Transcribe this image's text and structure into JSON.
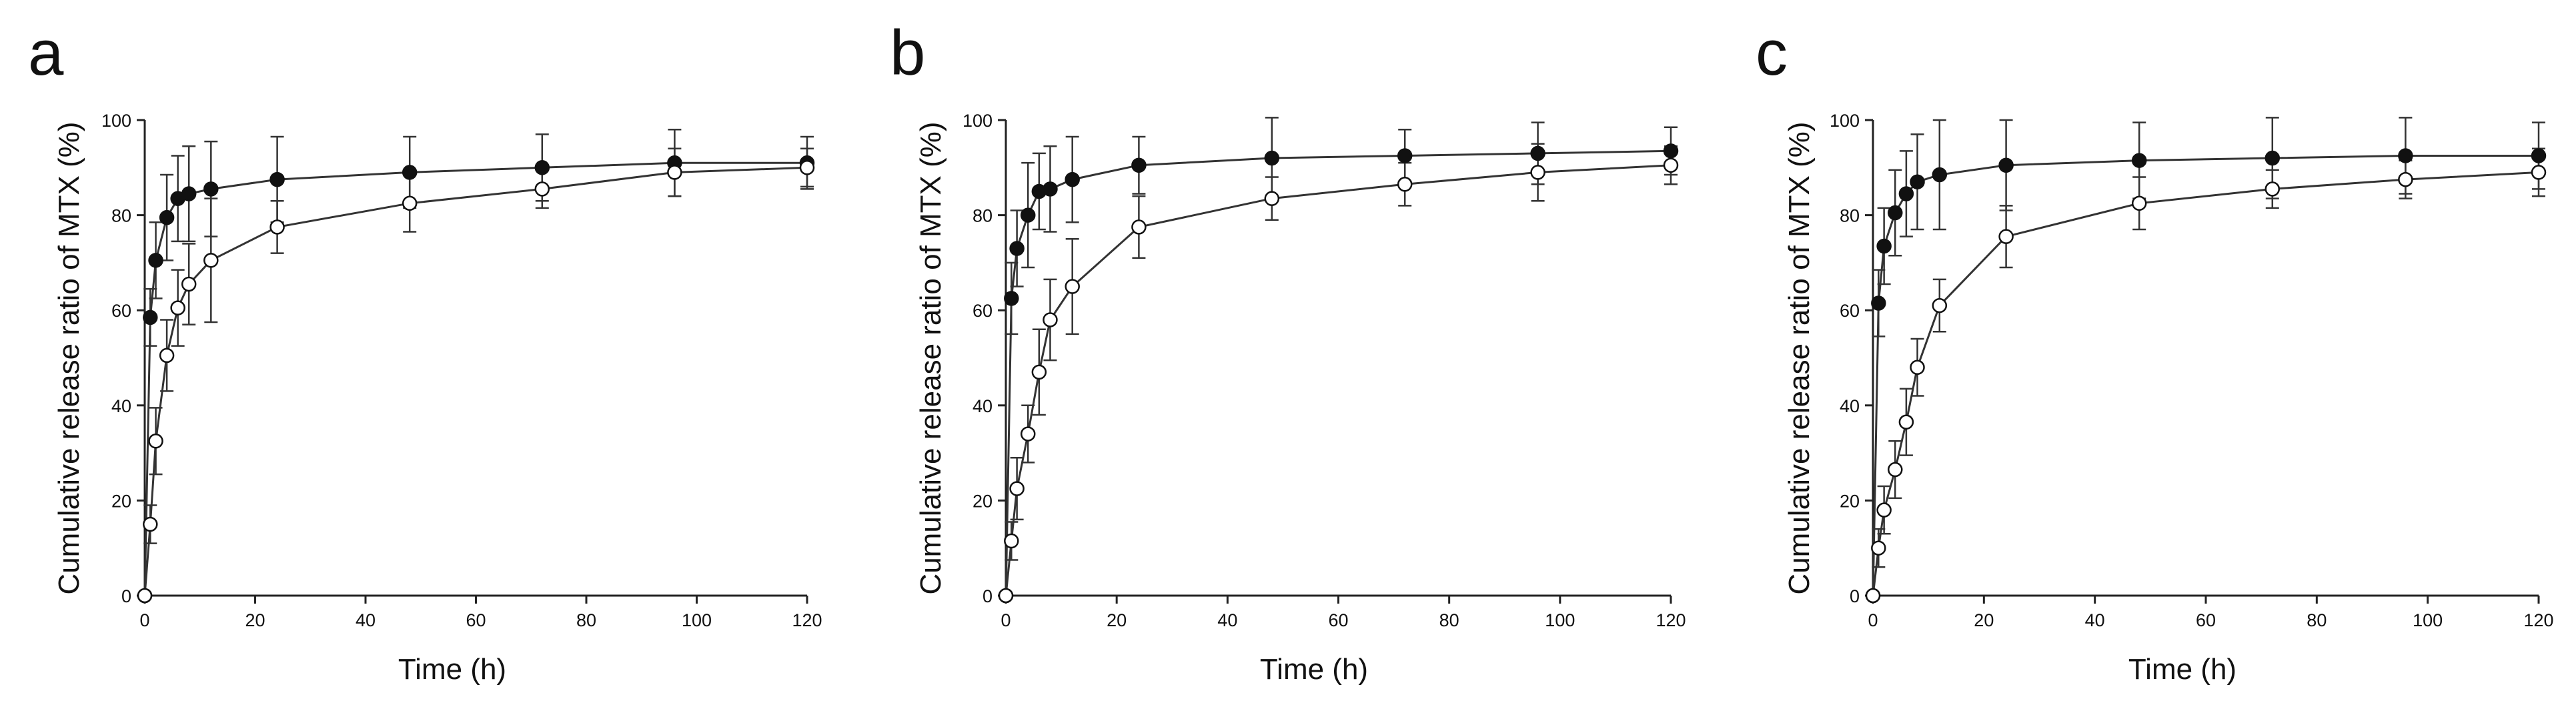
{
  "chart_data": [
    {
      "type": "line",
      "panel_label": "a",
      "xlabel": "Time (h)",
      "ylabel": "Cumulative release ratio of MTX (%)",
      "xlim": [
        0,
        120
      ],
      "ylim": [
        0,
        100
      ],
      "xticks": [
        0,
        20,
        40,
        60,
        80,
        100,
        120
      ],
      "yticks": [
        0,
        20,
        40,
        60,
        80,
        100
      ],
      "x": [
        0,
        1,
        2,
        4,
        6,
        8,
        12,
        24,
        48,
        72,
        96,
        120
      ],
      "series": [
        {
          "name": "filled",
          "marker": "filled",
          "values": [
            0,
            58.5,
            70.5,
            79.5,
            83.5,
            84.5,
            85.5,
            87.5,
            89,
            90,
            91,
            91
          ],
          "errors": [
            0,
            6,
            8,
            9,
            9,
            10,
            10,
            9,
            7.5,
            7,
            7,
            5.5
          ]
        },
        {
          "name": "open",
          "marker": "open",
          "values": [
            0,
            15,
            32.5,
            50.5,
            60.5,
            65.5,
            70.5,
            77.5,
            82.5,
            85.5,
            89,
            90
          ],
          "errors": [
            0,
            4,
            7,
            7.5,
            8,
            8.5,
            13,
            5.5,
            6,
            4,
            5,
            4
          ]
        }
      ]
    },
    {
      "type": "line",
      "panel_label": "b",
      "xlabel": "Time (h)",
      "ylabel": "Cumulative release ratio of MTX (%)",
      "xlim": [
        0,
        120
      ],
      "ylim": [
        0,
        100
      ],
      "xticks": [
        0,
        20,
        40,
        60,
        80,
        100,
        120
      ],
      "yticks": [
        0,
        20,
        40,
        60,
        80,
        100
      ],
      "x": [
        0,
        1,
        2,
        4,
        6,
        8,
        12,
        24,
        48,
        72,
        96,
        120
      ],
      "series": [
        {
          "name": "filled",
          "marker": "filled",
          "values": [
            0,
            62.5,
            73,
            80,
            85,
            85.5,
            87.5,
            90.5,
            92,
            92.5,
            93,
            93.5
          ],
          "errors": [
            0,
            7.5,
            8,
            11,
            8,
            9,
            9,
            6,
            8.5,
            5.5,
            6.5,
            5
          ]
        },
        {
          "name": "open",
          "marker": "open",
          "values": [
            0,
            11.5,
            22.5,
            34,
            47,
            58,
            65,
            77.5,
            83.5,
            86.5,
            89,
            90.5
          ],
          "errors": [
            0,
            4,
            6.5,
            6,
            9,
            8.5,
            10,
            6.5,
            4.5,
            4.5,
            6,
            4
          ]
        }
      ]
    },
    {
      "type": "line",
      "panel_label": "c",
      "xlabel": "Time (h)",
      "ylabel": "Cumulative release ratio of MTX (%)",
      "xlim": [
        0,
        120
      ],
      "ylim": [
        0,
        100
      ],
      "xticks": [
        0,
        20,
        40,
        60,
        80,
        100,
        120
      ],
      "yticks": [
        0,
        20,
        40,
        60,
        80,
        100
      ],
      "x": [
        0,
        1,
        2,
        4,
        6,
        8,
        12,
        24,
        48,
        72,
        96,
        120
      ],
      "series": [
        {
          "name": "filled",
          "marker": "filled",
          "values": [
            0,
            61.5,
            73.5,
            80.5,
            84.5,
            87,
            88.5,
            90.5,
            91.5,
            92,
            92.5,
            92.5
          ],
          "errors": [
            0,
            7,
            8,
            9,
            9,
            10,
            11.5,
            9.5,
            8,
            8.5,
            8,
            7
          ]
        },
        {
          "name": "open",
          "marker": "open",
          "values": [
            0,
            10,
            18,
            26.5,
            36.5,
            48,
            61,
            75.5,
            82.5,
            85.5,
            87.5,
            89
          ],
          "errors": [
            0,
            4,
            5,
            6,
            7,
            6,
            5.5,
            6.5,
            5.5,
            4,
            4,
            5
          ]
        }
      ]
    }
  ]
}
